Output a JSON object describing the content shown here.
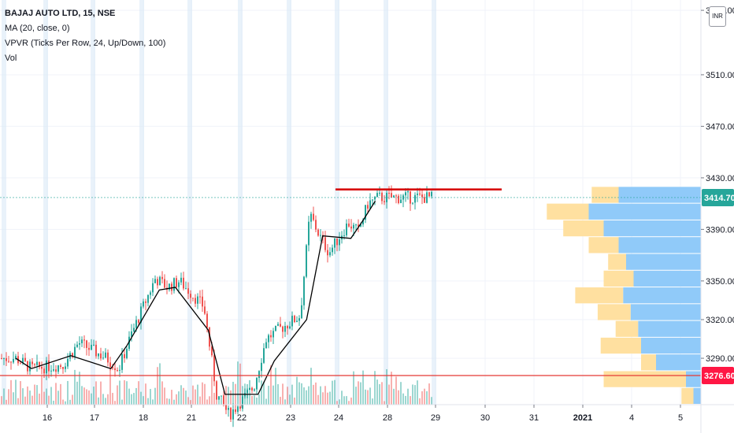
{
  "legend": {
    "symbol": "BAJAJ AUTO LTD, 15, NSE",
    "ma": "MA (20, close, 0)",
    "vpvr": "VPVR (Ticks Per Row, 24, Up/Down, 100)",
    "vol": "Vol"
  },
  "currency_button": "INR",
  "colors": {
    "up": "#26a69a",
    "down": "#ef5350",
    "ma": "#000000",
    "resistance": "#d50000",
    "support": "#e53935",
    "vp_up": "#90caf9",
    "vp_down": "#ffe0a0",
    "last_price_badge": "#26a69a",
    "support_badge": "#ff1744"
  },
  "chart_data": {
    "type": "candlestick",
    "title": "BAJAJ AUTO LTD, 15, NSE",
    "ylim": [
      3254,
      3568
    ],
    "y_ticks": [
      3560,
      3510,
      3470,
      3430,
      3390,
      3350,
      3320,
      3290
    ],
    "y_tick_labels": [
      "3560.00",
      "3510.00",
      "3470.00",
      "3430.00",
      "3390.00",
      "3350.00",
      "3320.00",
      "3290.00"
    ],
    "x_ticks": [
      "16",
      "17",
      "18",
      "21",
      "22",
      "23",
      "24",
      "28",
      "29",
      "30",
      "31",
      "2021",
      "4",
      "5"
    ],
    "last_price": 3414.7,
    "last_price_label": "3414.70",
    "support_price": 3276.6,
    "support_label": "3276.60",
    "resistance_price": 3421,
    "price_path": [
      {
        "d": "16",
        "p": 3290
      },
      {
        "d": "16",
        "p": 3282
      },
      {
        "d": "17",
        "p": 3285
      },
      {
        "d": "17",
        "p": 3302
      },
      {
        "d": "18",
        "p": 3290
      },
      {
        "d": "18",
        "p": 3282
      },
      {
        "d": "18",
        "p": 3308
      },
      {
        "d": "21",
        "p": 3352
      },
      {
        "d": "21",
        "p": 3345
      },
      {
        "d": "21",
        "p": 3350
      },
      {
        "d": "22",
        "p": 3330
      },
      {
        "d": "22",
        "p": 3262
      },
      {
        "d": "22",
        "p": 3246
      },
      {
        "d": "23",
        "p": 3268
      },
      {
        "d": "23",
        "p": 3305
      },
      {
        "d": "23",
        "p": 3312
      },
      {
        "d": "24",
        "p": 3323
      },
      {
        "d": "24",
        "p": 3402
      },
      {
        "d": "24",
        "p": 3385
      },
      {
        "d": "24",
        "p": 3372
      },
      {
        "d": "28",
        "p": 3395
      },
      {
        "d": "28",
        "p": 3388
      },
      {
        "d": "28",
        "p": 3410
      },
      {
        "d": "28",
        "p": 3414.7
      }
    ],
    "ma_path": [
      {
        "d": "16",
        "p": 3290
      },
      {
        "d": "16",
        "p": 3282
      },
      {
        "d": "17",
        "p": 3292
      },
      {
        "d": "18",
        "p": 3282
      },
      {
        "d": "18",
        "p": 3300
      },
      {
        "d": "21",
        "p": 3343
      },
      {
        "d": "21",
        "p": 3345
      },
      {
        "d": "22",
        "p": 3312
      },
      {
        "d": "22",
        "p": 3262
      },
      {
        "d": "23",
        "p": 3262
      },
      {
        "d": "23",
        "p": 3288
      },
      {
        "d": "24",
        "p": 3320
      },
      {
        "d": "24",
        "p": 3385
      },
      {
        "d": "28",
        "p": 3383
      },
      {
        "d": "28",
        "p": 3397
      },
      {
        "d": "28",
        "p": 3412
      }
    ],
    "volume_profile_rows": [
      {
        "price_low": 3254,
        "price_high": 3267,
        "up": 0.05,
        "down": 0.08
      },
      {
        "price_low": 3267,
        "price_high": 3280,
        "up": 0.1,
        "down": 0.55
      },
      {
        "price_low": 3280,
        "price_high": 3293,
        "up": 0.3,
        "down": 0.1
      },
      {
        "price_low": 3293,
        "price_high": 3306,
        "up": 0.4,
        "down": 0.27
      },
      {
        "price_low": 3306,
        "price_high": 3319,
        "up": 0.42,
        "down": 0.15
      },
      {
        "price_low": 3319,
        "price_high": 3332,
        "up": 0.47,
        "down": 0.22
      },
      {
        "price_low": 3332,
        "price_high": 3345,
        "up": 0.52,
        "down": 0.32
      },
      {
        "price_low": 3345,
        "price_high": 3358,
        "up": 0.45,
        "down": 0.2
      },
      {
        "price_low": 3358,
        "price_high": 3371,
        "up": 0.5,
        "down": 0.12
      },
      {
        "price_low": 3371,
        "price_high": 3384,
        "up": 0.55,
        "down": 0.2
      },
      {
        "price_low": 3384,
        "price_high": 3397,
        "up": 0.65,
        "down": 0.27
      },
      {
        "price_low": 3397,
        "price_high": 3410,
        "up": 0.75,
        "down": 0.28
      },
      {
        "price_low": 3410,
        "price_high": 3423,
        "up": 0.55,
        "down": 0.18
      }
    ]
  }
}
